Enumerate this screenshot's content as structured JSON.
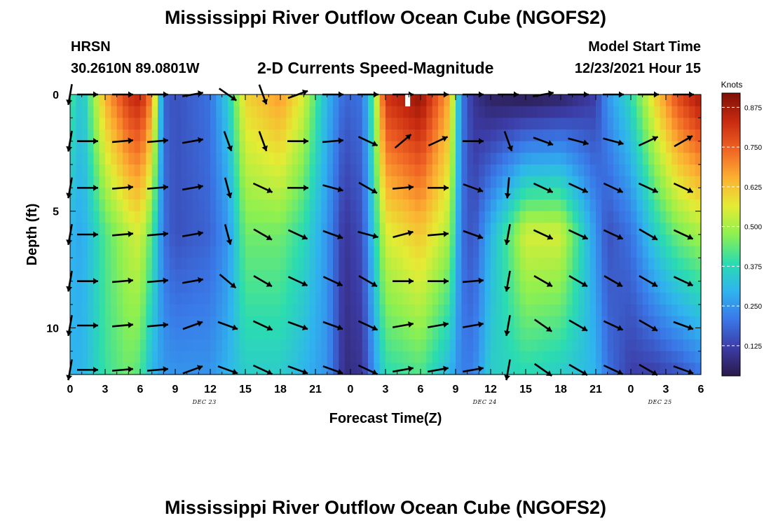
{
  "header": {
    "title": "Mississippi River Outflow Ocean Cube (NGOFS2)",
    "station": "HRSN",
    "coords": "30.2610N  89.0801W",
    "subtitle": "2-D Currents Speed-Magnitude",
    "model_label": "Model Start Time",
    "model_time": "12/23/2021 Hour 15",
    "bottom_title": "Mississippi River Outflow Ocean Cube (NGOFS2)"
  },
  "chart_data": {
    "type": "heatmap",
    "title": "2-D Currents Speed-Magnitude",
    "xlabel": "Forecast Time(Z)",
    "ylabel": "Depth (ft)",
    "x_hours": [
      0,
      3,
      6,
      9,
      12,
      15,
      18,
      21,
      0,
      3,
      6,
      9,
      12,
      15,
      18,
      21,
      0,
      3,
      6
    ],
    "x_tick_labels": [
      "0",
      "3",
      "6",
      "9",
      "12",
      "15",
      "18",
      "21",
      "0",
      "3",
      "6",
      "9",
      "12",
      "15",
      "18",
      "21",
      "0",
      "3",
      "6"
    ],
    "date_labels": [
      {
        "text": "DEC 23",
        "hour": 11.5
      },
      {
        "text": "DEC 24",
        "hour": 35.5
      },
      {
        "text": "DEC 25",
        "hour": 50.5
      }
    ],
    "x_range_hours": [
      0,
      54
    ],
    "y_ticks": [
      0,
      5,
      10
    ],
    "y_range_ft": [
      0,
      12
    ],
    "colorbar": {
      "label": "Knots",
      "ticks": [
        "0.875",
        "0.750",
        "0.625",
        "0.500",
        "0.375",
        "0.250",
        "0.125"
      ],
      "range": [
        0.03,
        0.92
      ],
      "colors": [
        "#2a1a4a",
        "#3c3ca6",
        "#3a78e8",
        "#2fb4ee",
        "#2bdcb0",
        "#8cf050",
        "#e4ec34",
        "#fcb032",
        "#f06424",
        "#c82a10",
        "#7e0f06"
      ]
    },
    "speed_profiles_by_hour": [
      [
        0,
        0.42,
        0.3,
        0.3
      ],
      [
        1,
        0.32,
        0.28,
        0.3
      ],
      [
        3,
        0.65,
        0.42,
        0.4
      ],
      [
        5,
        0.82,
        0.52,
        0.45
      ],
      [
        6,
        0.85,
        0.55,
        0.42
      ],
      [
        7,
        0.7,
        0.42,
        0.3
      ],
      [
        8,
        0.18,
        0.2,
        0.26
      ],
      [
        9,
        0.15,
        0.15,
        0.25
      ],
      [
        12,
        0.2,
        0.18,
        0.25
      ],
      [
        13.5,
        0.35,
        0.25,
        0.3
      ],
      [
        15,
        0.6,
        0.45,
        0.35
      ],
      [
        18,
        0.68,
        0.45,
        0.35
      ],
      [
        20,
        0.55,
        0.38,
        0.3
      ],
      [
        22,
        0.3,
        0.25,
        0.25
      ],
      [
        23.5,
        0.18,
        0.1,
        0.08
      ],
      [
        25,
        0.2,
        0.15,
        0.1
      ],
      [
        26,
        0.45,
        0.35,
        0.25
      ],
      [
        27,
        0.82,
        0.55,
        0.38
      ],
      [
        30,
        0.9,
        0.62,
        0.42
      ],
      [
        32.5,
        0.65,
        0.5,
        0.3
      ],
      [
        33.5,
        0.22,
        0.2,
        0.22
      ],
      [
        34.5,
        0.1,
        0.15,
        0.22
      ],
      [
        36,
        0.05,
        0.3,
        0.35
      ],
      [
        39,
        0.03,
        0.55,
        0.38
      ],
      [
        42,
        0.05,
        0.55,
        0.35
      ],
      [
        45,
        0.12,
        0.25,
        0.3
      ],
      [
        46,
        0.25,
        0.15,
        0.2
      ],
      [
        48,
        0.38,
        0.2,
        0.12
      ],
      [
        50,
        0.6,
        0.35,
        0.12
      ],
      [
        52,
        0.78,
        0.45,
        0.15
      ],
      [
        54,
        0.88,
        0.5,
        0.2
      ]
    ],
    "profile_depths_ft": [
      0,
      6,
      12
    ],
    "vector_rows_ft": [
      0,
      2,
      4,
      6,
      8,
      9.9,
      11.8
    ],
    "vector_columns_hours": [
      0,
      1.5,
      4.5,
      7.5,
      10.5,
      13.5,
      16.5,
      19.5,
      22.5,
      25.5,
      28.5,
      31.5,
      34.5,
      37.5,
      40.5,
      43.5,
      46.5,
      49.5,
      52.5
    ],
    "vector_directions_deg": [
      [
        -100,
        0,
        0,
        0,
        10,
        -35,
        -70,
        20,
        0,
        0,
        0,
        0,
        0,
        0,
        10,
        0,
        0,
        0,
        0
      ],
      [
        -100,
        0,
        5,
        5,
        10,
        -70,
        -70,
        0,
        5,
        -25,
        40,
        25,
        0,
        -70,
        -20,
        -15,
        -15,
        25,
        30
      ],
      [
        -100,
        0,
        5,
        5,
        10,
        -75,
        -25,
        0,
        -15,
        -30,
        5,
        0,
        -20,
        -95,
        -25,
        -25,
        -25,
        -25,
        -25
      ],
      [
        -100,
        0,
        5,
        5,
        10,
        -75,
        -30,
        -25,
        -20,
        -15,
        15,
        5,
        -20,
        -100,
        -25,
        -25,
        -25,
        -30,
        -25
      ],
      [
        -100,
        0,
        5,
        5,
        10,
        -40,
        -30,
        -25,
        -25,
        -30,
        0,
        0,
        5,
        -100,
        -30,
        -30,
        -30,
        -30,
        -25
      ],
      [
        -100,
        0,
        5,
        5,
        20,
        -20,
        -25,
        -20,
        -20,
        -25,
        10,
        10,
        10,
        -100,
        -35,
        -30,
        -25,
        -30,
        -20
      ],
      [
        -100,
        0,
        5,
        5,
        20,
        -20,
        -25,
        -20,
        -20,
        -25,
        10,
        10,
        10,
        -100,
        -35,
        -30,
        -25,
        -30,
        -20
      ]
    ]
  }
}
